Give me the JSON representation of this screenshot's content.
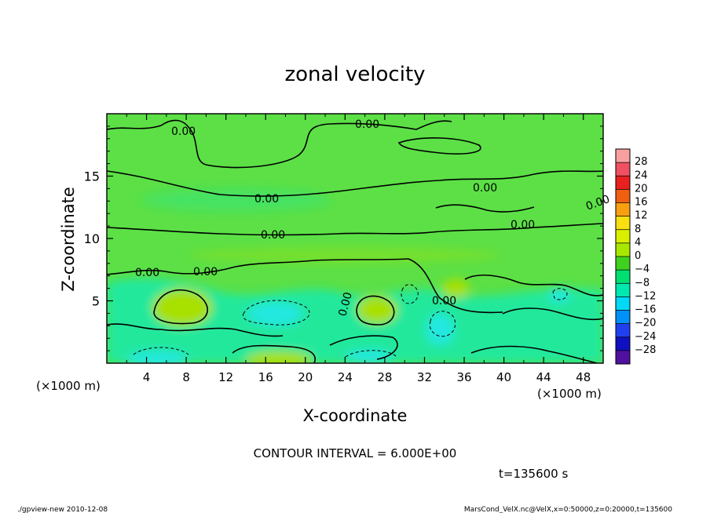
{
  "chart_data": {
    "type": "heatmap",
    "title": "zonal velocity",
    "xlabel": "X-coordinate",
    "ylabel": "Z-coordinate",
    "x_unit": "(×1000 m)",
    "y_unit": "(×1000 m)",
    "xlim": [
      0,
      50
    ],
    "ylim": [
      0,
      20
    ],
    "x_ticks": [
      4,
      8,
      12,
      16,
      20,
      24,
      28,
      32,
      36,
      40,
      44,
      48
    ],
    "y_ticks": [
      5,
      10,
      15
    ],
    "contour_interval_text": "CONTOUR INTERVAL = 6.000E+00",
    "contour_labels": [
      "0.00",
      "0.00",
      "0.00",
      "0.00",
      "0.00",
      "0.00",
      "0.00",
      "0.00",
      "0.00",
      "0.00",
      "0.00"
    ],
    "time_text": "t=135600 s",
    "colorbar": {
      "labels": [
        "28",
        "24",
        "20",
        "16",
        "12",
        "8",
        "4",
        "0",
        "−4",
        "−8",
        "−12",
        "−16",
        "−20",
        "−24",
        "−28"
      ],
      "colors": [
        "#f8a0a0",
        "#f05060",
        "#e82020",
        "#f06010",
        "#f8a010",
        "#f8e010",
        "#d8f000",
        "#a8e800",
        "#40d020",
        "#00e070",
        "#00e8b0",
        "#00d8f8",
        "#0090f8",
        "#2040f0",
        "#1010c0",
        "#5010a0"
      ]
    },
    "colors": {
      "background_field": "#5ce046",
      "positive_region": "#a8e000",
      "negative_region": "#22e89c",
      "strong_negative": "#20e8e0",
      "contour_line": "#000000"
    }
  },
  "footer": {
    "left": "./gpview-new   2010-12-08",
    "right": "MarsCond_VelX.nc@VelX,x=0:50000,z=0:20000,t=135600"
  }
}
